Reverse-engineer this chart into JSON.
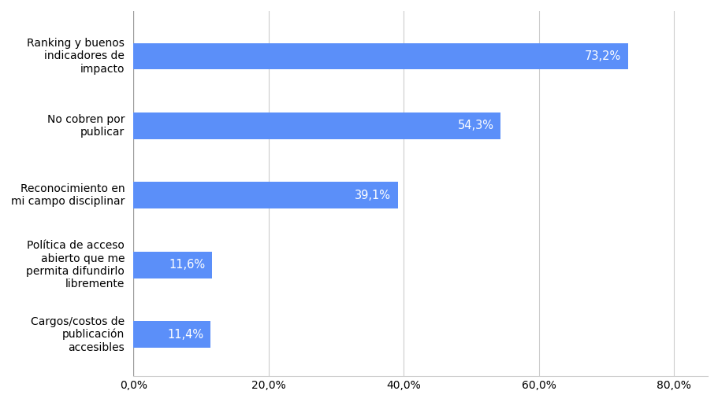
{
  "categories": [
    "Cargos/costos de\npublicación\naccesibles",
    "Política de acceso\nabierto que me\npermita difundirlo\nlibremente",
    "Reconocimiento en\nmi campo disciplinar",
    "No cobren por\npublicar",
    "Ranking y buenos\nindicadores de\nimpacto"
  ],
  "values": [
    11.4,
    11.6,
    39.1,
    54.3,
    73.2
  ],
  "bar_color": "#5b8ff9",
  "label_color": "#ffffff",
  "label_fontsize": 10.5,
  "bar_height": 0.38,
  "xlim": [
    0,
    85
  ],
  "xticks": [
    0,
    20,
    40,
    60,
    80
  ],
  "xtick_labels": [
    "0,0%",
    "20,0%",
    "40,0%",
    "60,0%",
    "80,0%"
  ],
  "background_color": "#ffffff",
  "grid_color": "#cccccc",
  "ytick_fontsize": 10,
  "xtick_fontsize": 10
}
